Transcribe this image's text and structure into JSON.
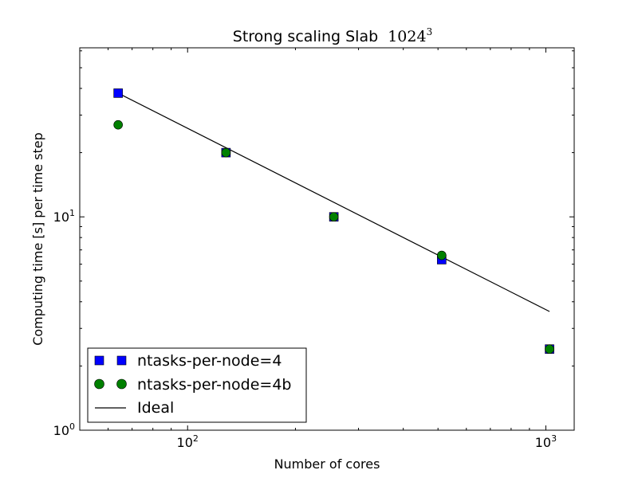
{
  "chart_data": {
    "type": "scatter",
    "title": "Strong scaling Slab",
    "title_math": "1024",
    "title_math_exp": "3",
    "xlabel": "Number of cores",
    "ylabel": "Computing time [s] per time step",
    "xscale": "log",
    "yscale": "log",
    "xlim": [
      50,
      1200
    ],
    "ylim": [
      1,
      62
    ],
    "x_ticks": [
      {
        "base": "10",
        "exp": "2",
        "value": 100
      },
      {
        "base": "10",
        "exp": "3",
        "value": 1000
      }
    ],
    "y_ticks": [
      {
        "base": "10",
        "exp": "0",
        "value": 1
      },
      {
        "base": "10",
        "exp": "1",
        "value": 10
      }
    ],
    "series": [
      {
        "name": "ntasks-per-node=4",
        "marker": "square",
        "color": "#0000ff",
        "x": [
          64,
          128,
          256,
          512,
          1024
        ],
        "y": [
          38,
          20.0,
          10.0,
          6.3,
          2.4
        ]
      },
      {
        "name": "ntasks-per-node=4b",
        "marker": "circle",
        "color": "#008000",
        "x": [
          64,
          128,
          256,
          512,
          1024
        ],
        "y": [
          27,
          20.0,
          10.0,
          6.6,
          2.4
        ]
      },
      {
        "name": "Ideal",
        "marker": "line",
        "color": "#000000",
        "x": [
          64,
          1024
        ],
        "y": [
          38,
          3.6
        ]
      }
    ],
    "legend_position": "bottom-left"
  }
}
